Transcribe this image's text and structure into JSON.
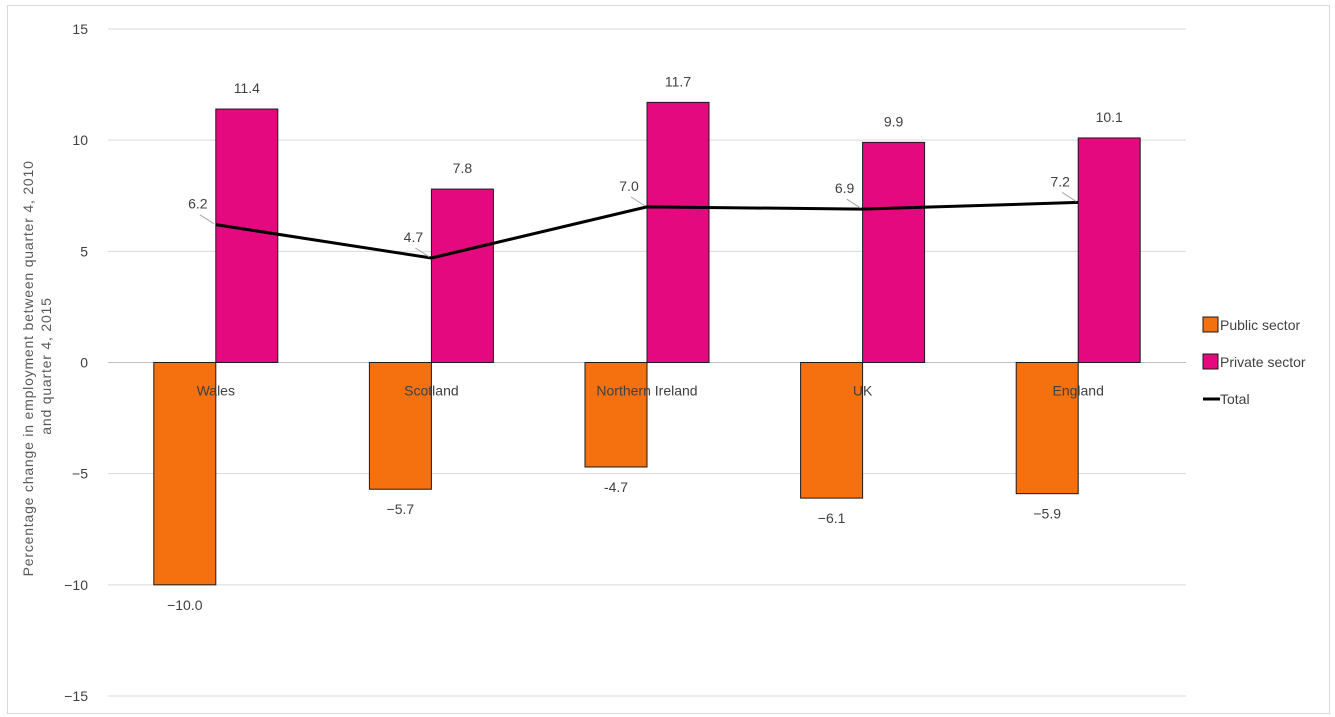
{
  "chart_data": {
    "type": "bar",
    "ylabel": "Percentage change in employment between quarter 4, 2010 and quarter 4, 2015",
    "ylabel_lines": [
      "Percentage change in employment between quarter 4, 2010",
      "and quarter 4, 2015"
    ],
    "ylim": [
      -15,
      15
    ],
    "yticks": [
      15,
      10,
      5,
      0,
      -5,
      -10,
      -15
    ],
    "ytick_labels": [
      "15",
      "10",
      "5",
      "0",
      "−5",
      "−10",
      "−15"
    ],
    "grid": true,
    "legend_position": "right",
    "categories": [
      "Wales",
      "Scotland",
      "Northern Ireland",
      "UK",
      "England"
    ],
    "series": [
      {
        "name": "Public sector",
        "type": "bar",
        "color": "#f5700f",
        "values": [
          -10.0,
          -5.7,
          -4.7,
          -6.1,
          -5.9
        ],
        "labels": [
          "−10.0",
          "−5.7",
          "-4.7",
          "−6.1",
          "−5.9"
        ]
      },
      {
        "name": "Private sector",
        "type": "bar",
        "color": "#e5097f",
        "values": [
          11.4,
          7.8,
          11.7,
          9.9,
          10.1
        ],
        "labels": [
          "11.4",
          "7.8",
          "11.7",
          "9.9",
          "10.1"
        ]
      },
      {
        "name": "Total",
        "type": "line",
        "color": "#000000",
        "values": [
          6.2,
          4.7,
          7.0,
          6.9,
          7.2
        ],
        "labels": [
          "6.2",
          "4.7",
          "7.0",
          "6.9",
          "7.2"
        ]
      }
    ]
  }
}
